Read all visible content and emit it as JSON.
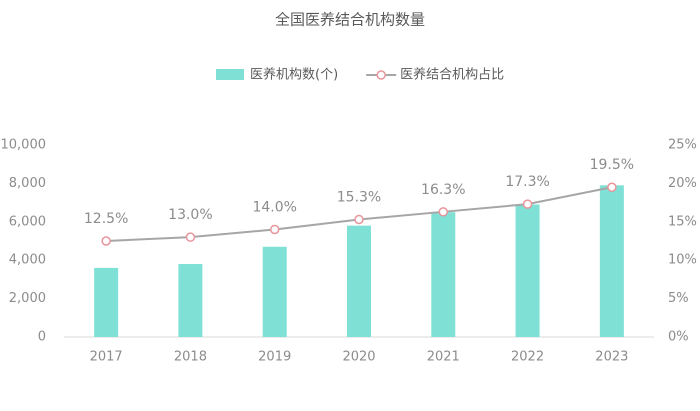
{
  "chart_data": {
    "type": "bar",
    "title": "全国医养结合机构数量",
    "categories": [
      "2017",
      "2018",
      "2019",
      "2020",
      "2021",
      "2022",
      "2023"
    ],
    "series": [
      {
        "name": "医养机构数(个)",
        "type": "bar",
        "color": "#7fe0d6",
        "values": [
          3600,
          3800,
          4700,
          5800,
          6500,
          6900,
          7900
        ]
      },
      {
        "name": "医养结合机构占比",
        "type": "line",
        "axis": "y2",
        "color": "#a6a6a6",
        "marker_color": "#e8959b",
        "values": [
          12.5,
          13.0,
          14.0,
          15.3,
          16.3,
          17.3,
          19.5
        ],
        "value_labels": [
          "12.5%",
          "13.0%",
          "14.0%",
          "15.3%",
          "16.3%",
          "17.3%",
          "19.5%"
        ]
      }
    ],
    "ylim": [
      0,
      10000
    ],
    "yticks": [
      0,
      {
        "value": 2000,
        "label": "2,000"
      },
      {
        "value": 4000,
        "label": "4,000"
      },
      {
        "value": 6000,
        "label": "6,000"
      },
      {
        "value": 8000,
        "label": "8,000"
      },
      {
        "value": 10000,
        "label": "10,000"
      }
    ],
    "y2lim": [
      0,
      25
    ],
    "y2ticks": [
      {
        "value": 0,
        "label": "0%"
      },
      {
        "value": 5,
        "label": "5%"
      },
      {
        "value": 10,
        "label": "10%"
      },
      {
        "value": 15,
        "label": "15%"
      },
      {
        "value": 20,
        "label": "20%"
      },
      {
        "value": 25,
        "label": "25%"
      }
    ]
  }
}
